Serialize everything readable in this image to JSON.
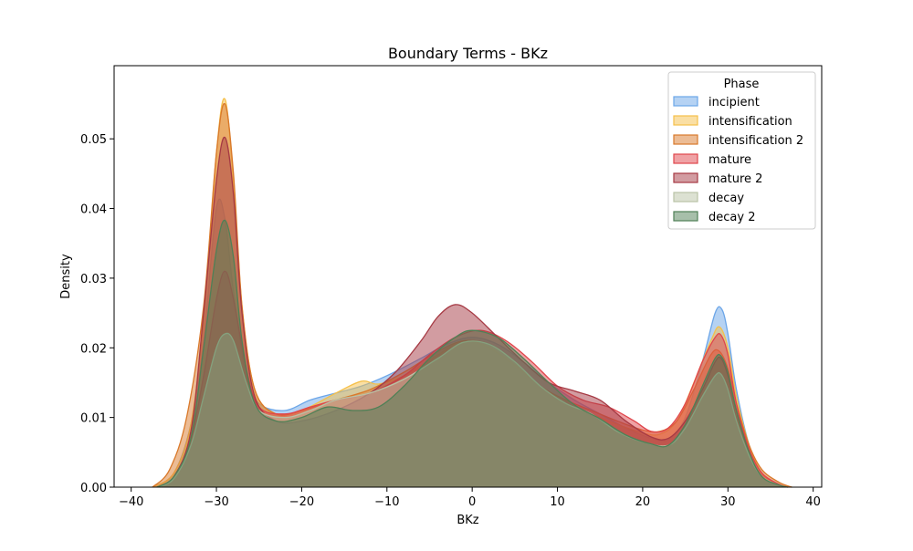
{
  "chart_data": {
    "type": "area",
    "title": "Boundary Terms - BKz",
    "xlabel": "BKz",
    "ylabel": "Density",
    "xlim": [
      -42,
      41
    ],
    "ylim": [
      0,
      0.0605
    ],
    "xticks": [
      -40,
      -30,
      -20,
      -10,
      0,
      10,
      20,
      30,
      40
    ],
    "xtick_labels": [
      "−40",
      "−30",
      "−20",
      "−10",
      "0",
      "10",
      "20",
      "30",
      "40"
    ],
    "yticks": [
      0,
      0.01,
      0.02,
      0.03,
      0.04,
      0.05
    ],
    "ytick_labels": [
      "0.00",
      "0.01",
      "0.02",
      "0.03",
      "0.04",
      "0.05"
    ],
    "grid": false,
    "legend": {
      "title": "Phase",
      "placement": "top-right"
    },
    "series": [
      {
        "name": "incipient",
        "color": "#6ca6e8",
        "points": [
          [
            -37.5,
            0
          ],
          [
            -35,
            0.002
          ],
          [
            -33,
            0.009
          ],
          [
            -31.5,
            0.021
          ],
          [
            -30,
            0.04
          ],
          [
            -29,
            0.0385
          ],
          [
            -28,
            0.028
          ],
          [
            -26.5,
            0.016
          ],
          [
            -25,
            0.012
          ],
          [
            -22,
            0.011
          ],
          [
            -19,
            0.0125
          ],
          [
            -16,
            0.0135
          ],
          [
            -13,
            0.0145
          ],
          [
            -10,
            0.016
          ],
          [
            -6,
            0.0185
          ],
          [
            -3,
            0.0205
          ],
          [
            0,
            0.0215
          ],
          [
            3,
            0.0205
          ],
          [
            6,
            0.018
          ],
          [
            9,
            0.015
          ],
          [
            12,
            0.0125
          ],
          [
            15,
            0.0105
          ],
          [
            18,
            0.0085
          ],
          [
            21,
            0.007
          ],
          [
            23,
            0.0068
          ],
          [
            25,
            0.01
          ],
          [
            27,
            0.018
          ],
          [
            28.5,
            0.025
          ],
          [
            29.3,
            0.0255
          ],
          [
            30,
            0.022
          ],
          [
            31,
            0.014
          ],
          [
            32.5,
            0.006
          ],
          [
            34,
            0.002
          ],
          [
            36,
            0.0004
          ],
          [
            37.5,
            0
          ]
        ]
      },
      {
        "name": "intensification",
        "color": "#f5c04a",
        "points": [
          [
            -37.5,
            0
          ],
          [
            -35,
            0.002
          ],
          [
            -33,
            0.009
          ],
          [
            -31.5,
            0.024
          ],
          [
            -30,
            0.048
          ],
          [
            -29,
            0.0557
          ],
          [
            -28,
            0.044
          ],
          [
            -27,
            0.026
          ],
          [
            -25.5,
            0.014
          ],
          [
            -23,
            0.0105
          ],
          [
            -20,
            0.011
          ],
          [
            -16,
            0.0135
          ],
          [
            -13,
            0.0152
          ],
          [
            -11,
            0.0148
          ],
          [
            -8,
            0.016
          ],
          [
            -4,
            0.019
          ],
          [
            -1,
            0.021
          ],
          [
            2,
            0.02
          ],
          [
            5,
            0.0175
          ],
          [
            8,
            0.0145
          ],
          [
            11,
            0.012
          ],
          [
            14,
            0.0105
          ],
          [
            17,
            0.009
          ],
          [
            20,
            0.0078
          ],
          [
            22,
            0.0076
          ],
          [
            24,
            0.0095
          ],
          [
            26,
            0.015
          ],
          [
            28,
            0.021
          ],
          [
            29,
            0.023
          ],
          [
            30,
            0.02
          ],
          [
            31,
            0.013
          ],
          [
            32.5,
            0.006
          ],
          [
            34,
            0.002
          ],
          [
            36,
            0.0004
          ],
          [
            37.5,
            0
          ]
        ]
      },
      {
        "name": "intensification 2",
        "color": "#d9792b",
        "points": [
          [
            -37.5,
            0
          ],
          [
            -35.5,
            0.0025
          ],
          [
            -33.5,
            0.01
          ],
          [
            -31.5,
            0.026
          ],
          [
            -30,
            0.048
          ],
          [
            -29,
            0.055
          ],
          [
            -28,
            0.045
          ],
          [
            -27,
            0.026
          ],
          [
            -25.5,
            0.014
          ],
          [
            -23,
            0.0105
          ],
          [
            -20,
            0.011
          ],
          [
            -16,
            0.0125
          ],
          [
            -12,
            0.014
          ],
          [
            -8,
            0.0165
          ],
          [
            -4,
            0.0195
          ],
          [
            -1,
            0.021
          ],
          [
            2,
            0.0205
          ],
          [
            5,
            0.018
          ],
          [
            8,
            0.0145
          ],
          [
            11,
            0.0125
          ],
          [
            14,
            0.011
          ],
          [
            17,
            0.0095
          ],
          [
            20,
            0.0082
          ],
          [
            22,
            0.008
          ],
          [
            24,
            0.0095
          ],
          [
            26,
            0.014
          ],
          [
            28,
            0.019
          ],
          [
            29,
            0.0195
          ],
          [
            30,
            0.017
          ],
          [
            31,
            0.012
          ],
          [
            32.5,
            0.006
          ],
          [
            34,
            0.0025
          ],
          [
            36,
            0.0007
          ],
          [
            37.5,
            0
          ]
        ]
      },
      {
        "name": "mature",
        "color": "#e0454b",
        "points": [
          [
            -37,
            0
          ],
          [
            -35,
            0.0015
          ],
          [
            -33,
            0.007
          ],
          [
            -31.5,
            0.016
          ],
          [
            -30,
            0.027
          ],
          [
            -29,
            0.031
          ],
          [
            -28,
            0.027
          ],
          [
            -26.5,
            0.017
          ],
          [
            -25,
            0.0115
          ],
          [
            -22,
            0.0105
          ],
          [
            -19,
            0.0115
          ],
          [
            -16,
            0.0125
          ],
          [
            -12,
            0.0135
          ],
          [
            -8,
            0.016
          ],
          [
            -5,
            0.019
          ],
          [
            -2,
            0.0215
          ],
          [
            1,
            0.0225
          ],
          [
            4,
            0.021
          ],
          [
            7,
            0.018
          ],
          [
            10,
            0.0145
          ],
          [
            13,
            0.0125
          ],
          [
            16,
            0.0115
          ],
          [
            19,
            0.0095
          ],
          [
            21,
            0.008
          ],
          [
            23,
            0.0085
          ],
          [
            25,
            0.012
          ],
          [
            27,
            0.018
          ],
          [
            28.5,
            0.0215
          ],
          [
            29.2,
            0.0218
          ],
          [
            30,
            0.019
          ],
          [
            31,
            0.012
          ],
          [
            32.5,
            0.0055
          ],
          [
            34,
            0.002
          ],
          [
            36,
            0.0004
          ],
          [
            37,
            0
          ]
        ]
      },
      {
        "name": "mature 2",
        "color": "#a63a44",
        "points": [
          [
            -37,
            0
          ],
          [
            -35,
            0.0015
          ],
          [
            -33,
            0.008
          ],
          [
            -31.5,
            0.025
          ],
          [
            -30,
            0.044
          ],
          [
            -29,
            0.0502
          ],
          [
            -28,
            0.042
          ],
          [
            -27,
            0.025
          ],
          [
            -25.5,
            0.013
          ],
          [
            -23,
            0.0095
          ],
          [
            -20,
            0.0095
          ],
          [
            -16,
            0.011
          ],
          [
            -12,
            0.0135
          ],
          [
            -9,
            0.0165
          ],
          [
            -6,
            0.021
          ],
          [
            -4,
            0.0245
          ],
          [
            -2,
            0.0262
          ],
          [
            0,
            0.025
          ],
          [
            3,
            0.0215
          ],
          [
            6,
            0.018
          ],
          [
            9,
            0.015
          ],
          [
            12,
            0.0138
          ],
          [
            15,
            0.0125
          ],
          [
            18,
            0.0095
          ],
          [
            21,
            0.0072
          ],
          [
            23,
            0.007
          ],
          [
            25,
            0.0095
          ],
          [
            27,
            0.014
          ],
          [
            28.5,
            0.018
          ],
          [
            29.2,
            0.0185
          ],
          [
            30,
            0.016
          ],
          [
            31,
            0.011
          ],
          [
            32.5,
            0.005
          ],
          [
            34,
            0.0015
          ],
          [
            36,
            0.0003
          ],
          [
            37,
            0
          ]
        ]
      },
      {
        "name": "decay",
        "color": "#b9c3a6",
        "points": [
          [
            -37,
            0
          ],
          [
            -35,
            0.0012
          ],
          [
            -33,
            0.006
          ],
          [
            -31.5,
            0.013
          ],
          [
            -30,
            0.02
          ],
          [
            -29,
            0.022
          ],
          [
            -28,
            0.021
          ],
          [
            -26.5,
            0.015
          ],
          [
            -25,
            0.011
          ],
          [
            -22,
            0.01
          ],
          [
            -19,
            0.011
          ],
          [
            -16,
            0.0125
          ],
          [
            -12,
            0.0135
          ],
          [
            -8,
            0.0155
          ],
          [
            -4,
            0.0185
          ],
          [
            -1,
            0.0208
          ],
          [
            2,
            0.0205
          ],
          [
            5,
            0.018
          ],
          [
            8,
            0.0145
          ],
          [
            11,
            0.012
          ],
          [
            14,
            0.0105
          ],
          [
            17,
            0.008
          ],
          [
            20,
            0.0065
          ],
          [
            23,
            0.006
          ],
          [
            25,
            0.0085
          ],
          [
            27,
            0.013
          ],
          [
            28.5,
            0.016
          ],
          [
            29.2,
            0.0162
          ],
          [
            30,
            0.014
          ],
          [
            31,
            0.0095
          ],
          [
            32.5,
            0.0045
          ],
          [
            34,
            0.0015
          ],
          [
            36,
            0.0003
          ],
          [
            37,
            0
          ]
        ]
      },
      {
        "name": "decay 2",
        "color": "#4f8056",
        "points": [
          [
            -37,
            0
          ],
          [
            -35,
            0.0015
          ],
          [
            -33,
            0.007
          ],
          [
            -31.5,
            0.02
          ],
          [
            -30,
            0.034
          ],
          [
            -29,
            0.0383
          ],
          [
            -28,
            0.033
          ],
          [
            -27,
            0.021
          ],
          [
            -25.5,
            0.012
          ],
          [
            -23,
            0.0095
          ],
          [
            -20,
            0.01
          ],
          [
            -17,
            0.0115
          ],
          [
            -14,
            0.011
          ],
          [
            -11,
            0.0115
          ],
          [
            -8,
            0.0145
          ],
          [
            -5,
            0.0185
          ],
          [
            -2,
            0.0215
          ],
          [
            0,
            0.0225
          ],
          [
            3,
            0.0215
          ],
          [
            6,
            0.0185
          ],
          [
            9,
            0.015
          ],
          [
            12,
            0.0118
          ],
          [
            15,
            0.0098
          ],
          [
            18,
            0.0075
          ],
          [
            21,
            0.0062
          ],
          [
            23,
            0.006
          ],
          [
            25,
            0.009
          ],
          [
            27,
            0.0145
          ],
          [
            28.5,
            0.0185
          ],
          [
            29.2,
            0.0188
          ],
          [
            30,
            0.0165
          ],
          [
            31,
            0.011
          ],
          [
            32.5,
            0.005
          ],
          [
            34,
            0.0015
          ],
          [
            36,
            0.0003
          ],
          [
            37,
            0
          ]
        ]
      }
    ]
  }
}
